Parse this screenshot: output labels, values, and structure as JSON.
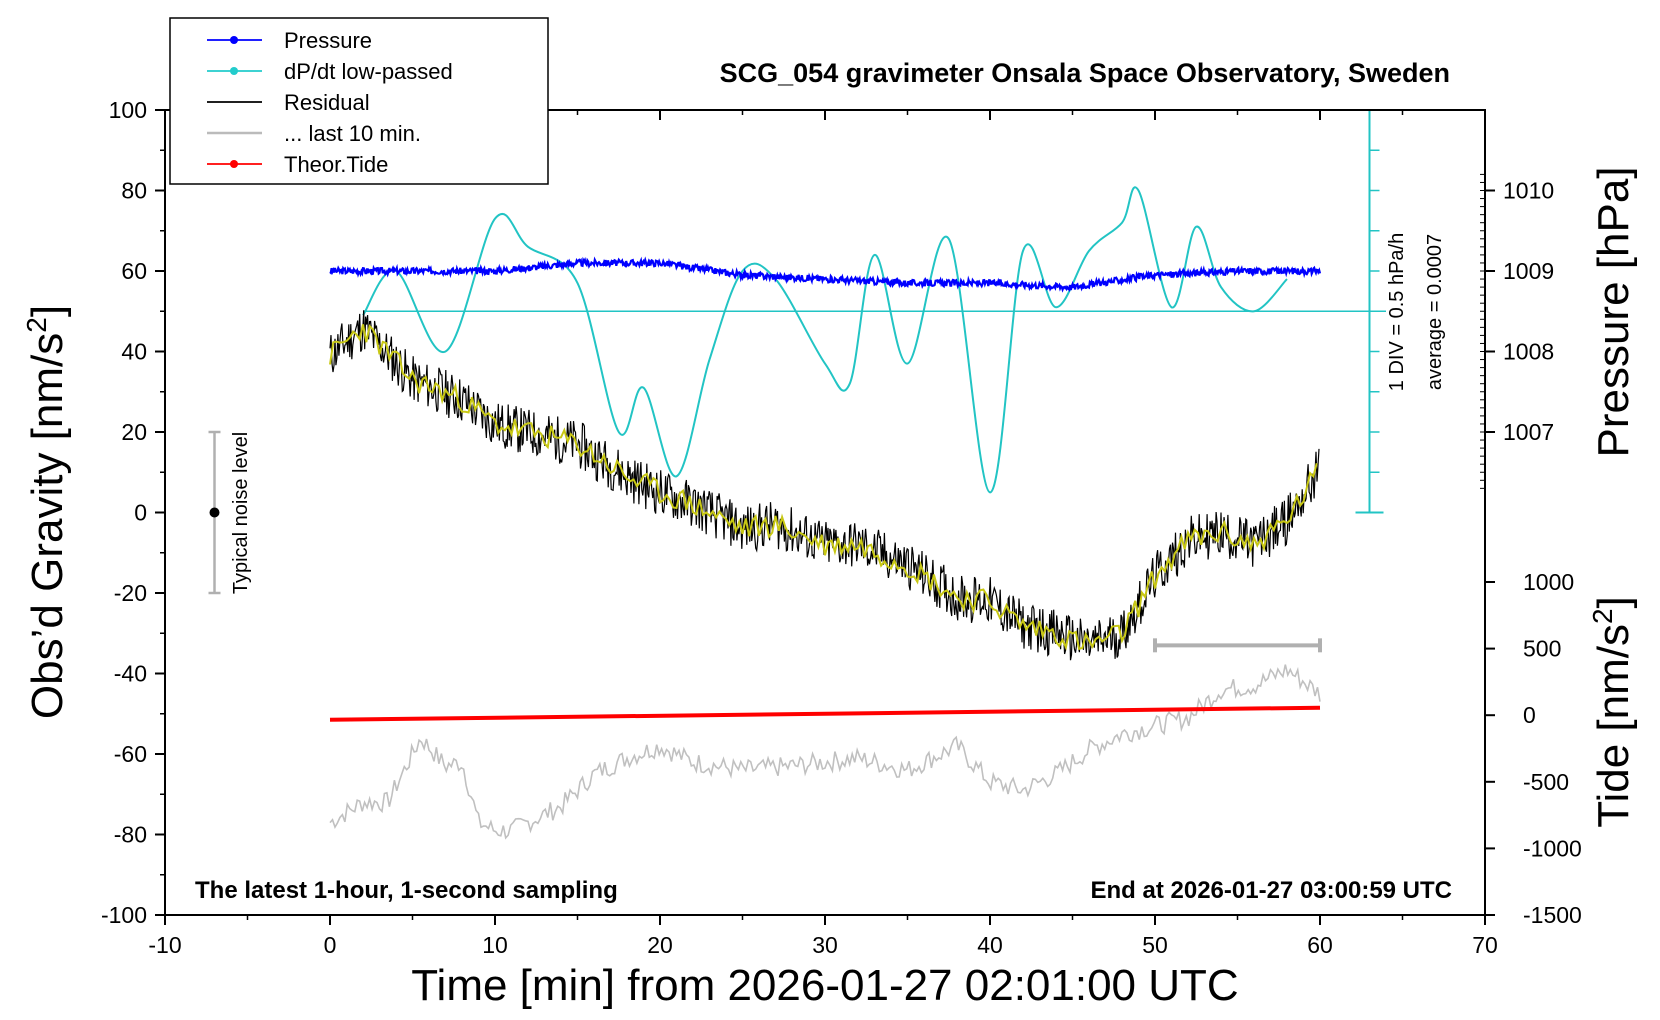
{
  "chart_data": {
    "type": "line",
    "title": "SCG_054 gravimeter Onsala Space Observatory, Sweden",
    "xlabel": "Time [min] from 2026-01-27 02:01:00 UTC",
    "ylabel_left": "Obs’d Gravity [nm/s",
    "ylabel_left_unit_sup": "2",
    "ylabel_left_close": "]",
    "ylabel_right_pressure": "Pressure [hPa]",
    "ylabel_right_tide": "Tide [nm/s",
    "ylabel_right_tide_sup": "2",
    "ylabel_right_tide_close": "]",
    "xlim": [
      -10,
      70
    ],
    "ylim": [
      -100,
      100
    ],
    "x_ticks": [
      "-10",
      "0",
      "10",
      "20",
      "30",
      "40",
      "50",
      "60",
      "70"
    ],
    "y_ticks": [
      "100",
      "80",
      "60",
      "40",
      "20",
      "0",
      "-20",
      "-40",
      "-60",
      "-80",
      "-100"
    ],
    "pressure_ticks": [
      "1010",
      "1009",
      "1008",
      "1007"
    ],
    "pressure_range_shown": [
      1006.2,
      1010.3
    ],
    "tide_ticks": [
      "1000",
      "500",
      "0",
      "-500",
      "-1000",
      "-1500"
    ],
    "tide_range": [
      -1500,
      1000
    ],
    "bottom_left_note": "The latest 1-hour, 1-second sampling",
    "bottom_right_note": "End at 2026-01-27 03:00:59 UTC",
    "noise_label": "Typical noise level",
    "dpdt_scale_label": "1 DIV = 0.5 hPa/h",
    "dpdt_average_label": "average = 0.0007",
    "legend": [
      {
        "label": "Pressure",
        "color": "#0000ff",
        "marker": true
      },
      {
        "label": "dP/dt low-passed",
        "color": "#22cccc",
        "marker": true
      },
      {
        "label": "Residual",
        "color": "#000000",
        "marker": false
      },
      {
        "label": "... last 10 min.",
        "color": "#bbbbbb",
        "marker": false
      },
      {
        "label": "Theor.Tide",
        "color": "#ff0000",
        "marker": true
      }
    ],
    "colors": {
      "pressure": "#0000ff",
      "dpdt": "#22c4c4",
      "residual": "#000000",
      "residual_smooth": "#c8c814",
      "last10": "#c0c0c0",
      "tide": "#ff0000",
      "noise_bar": "#b0b0b0"
    },
    "series": [
      {
        "name": "Pressure",
        "unit": "hPa",
        "x": [
          0,
          5,
          10,
          15,
          20,
          25,
          30,
          35,
          40,
          45,
          50,
          55,
          60
        ],
        "values": [
          1009.0,
          1009.0,
          1009.0,
          1009.1,
          1009.1,
          1008.95,
          1008.9,
          1008.85,
          1008.85,
          1008.8,
          1008.95,
          1009.0,
          1009.0
        ]
      },
      {
        "name": "dP/dt low-passed",
        "unit": "gravity-axis equivalent",
        "x": [
          2,
          4,
          7,
          10,
          12,
          15,
          17.5,
          19,
          21,
          23,
          25,
          27,
          30,
          31.5,
          33,
          35,
          37.5,
          40,
          42,
          44,
          46,
          48,
          49,
          51,
          52.5,
          54,
          56,
          58
        ],
        "values": [
          49,
          60,
          40,
          73,
          66,
          57,
          20,
          31,
          9,
          38,
          60,
          58,
          37,
          32,
          64,
          37,
          68,
          5,
          65,
          51,
          65,
          72,
          80,
          51,
          71,
          56,
          50,
          58
        ]
      },
      {
        "name": "Residual",
        "unit": "nm/s2",
        "x": [
          0,
          2,
          5,
          8,
          10,
          12,
          15,
          18,
          20,
          22,
          25,
          27,
          30,
          32,
          35,
          38,
          40,
          42,
          44,
          46,
          48,
          50,
          52,
          54,
          56,
          58,
          60
        ],
        "values": [
          39,
          46,
          33,
          28,
          22,
          20,
          17,
          9,
          5,
          2,
          -4,
          -3,
          -8,
          -8,
          -13,
          -21,
          -22,
          -28,
          -30,
          -33,
          -30,
          -16,
          -7,
          -5,
          -8,
          -2,
          11
        ]
      },
      {
        "name": "... last 10 min.",
        "unit": "nm/s2",
        "x": [
          0,
          2,
          3.5,
          5.5,
          7,
          8,
          9,
          10,
          11,
          12,
          14,
          16,
          18,
          20,
          22,
          25,
          28,
          30,
          32,
          35,
          38,
          40,
          42,
          44,
          46,
          48,
          50,
          52,
          54,
          56,
          58,
          60
        ],
        "values": [
          -77,
          -72,
          -72,
          -56,
          -63,
          -62,
          -77,
          -79,
          -79,
          -77,
          -73,
          -65,
          -61,
          -58,
          -62,
          -64,
          -63,
          -62,
          -61,
          -64,
          -58,
          -67,
          -69,
          -65,
          -59,
          -55,
          -53,
          -51,
          -44,
          -43,
          -39,
          -45
        ]
      },
      {
        "name": "Theor.Tide",
        "unit": "nm/s2",
        "x": [
          0,
          60
        ],
        "values": [
          -51.5,
          -48.5
        ]
      }
    ],
    "noise_bar": {
      "center": 0,
      "half_range": 20,
      "x_minutes": -7
    },
    "last10_bracket": {
      "x_start": 50,
      "x_end": 60,
      "y": -33
    }
  }
}
